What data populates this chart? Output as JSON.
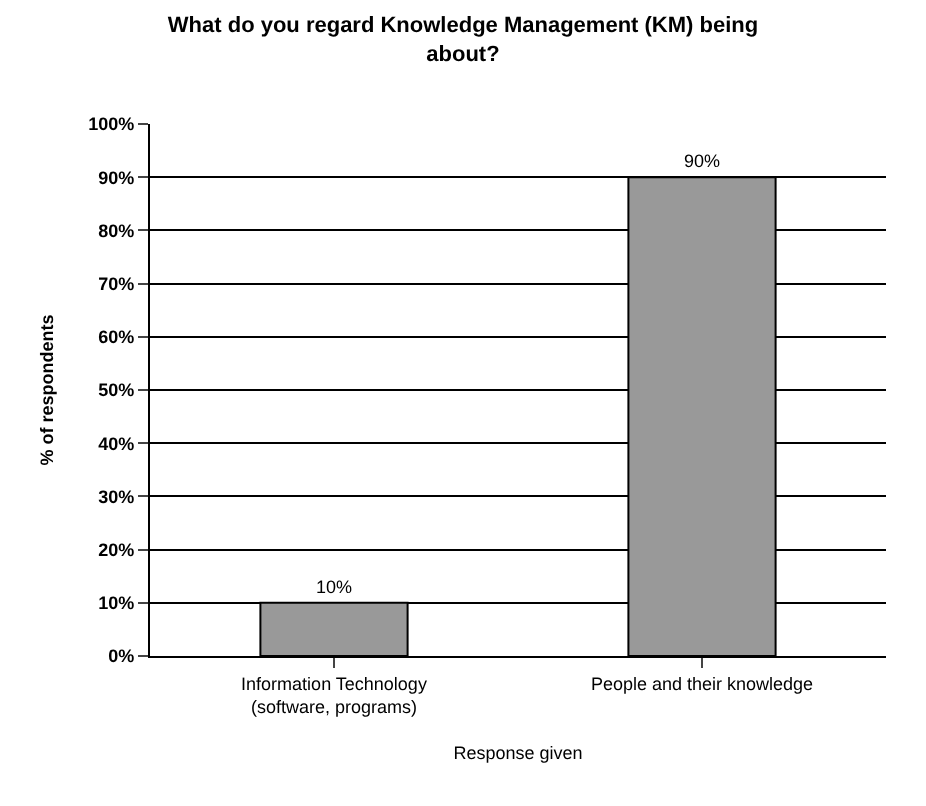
{
  "chart_data": {
    "type": "bar",
    "title": "What do you regard Knowledge Management (KM) being about?",
    "xlabel": "Response given",
    "ylabel": "% of respondents",
    "categories": [
      "Information Technology (software, programs)",
      "People and their knowledge"
    ],
    "values": [
      10,
      90
    ],
    "color": "#999999",
    "value_labels": [
      "10%",
      "90%"
    ],
    "ylim": [
      0,
      100
    ],
    "yticks": [
      {
        "value": 0,
        "label": "0%"
      },
      {
        "value": 10,
        "label": "10%"
      },
      {
        "value": 20,
        "label": "20%"
      },
      {
        "value": 30,
        "label": "30%"
      },
      {
        "value": 40,
        "label": "40%"
      },
      {
        "value": 50,
        "label": "50%"
      },
      {
        "value": 60,
        "label": "60%"
      },
      {
        "value": 70,
        "label": "70%"
      },
      {
        "value": 80,
        "label": "80%"
      },
      {
        "value": 90,
        "label": "90%"
      },
      {
        "value": 100,
        "label": "100%"
      }
    ],
    "grid": "y",
    "legend": false
  }
}
